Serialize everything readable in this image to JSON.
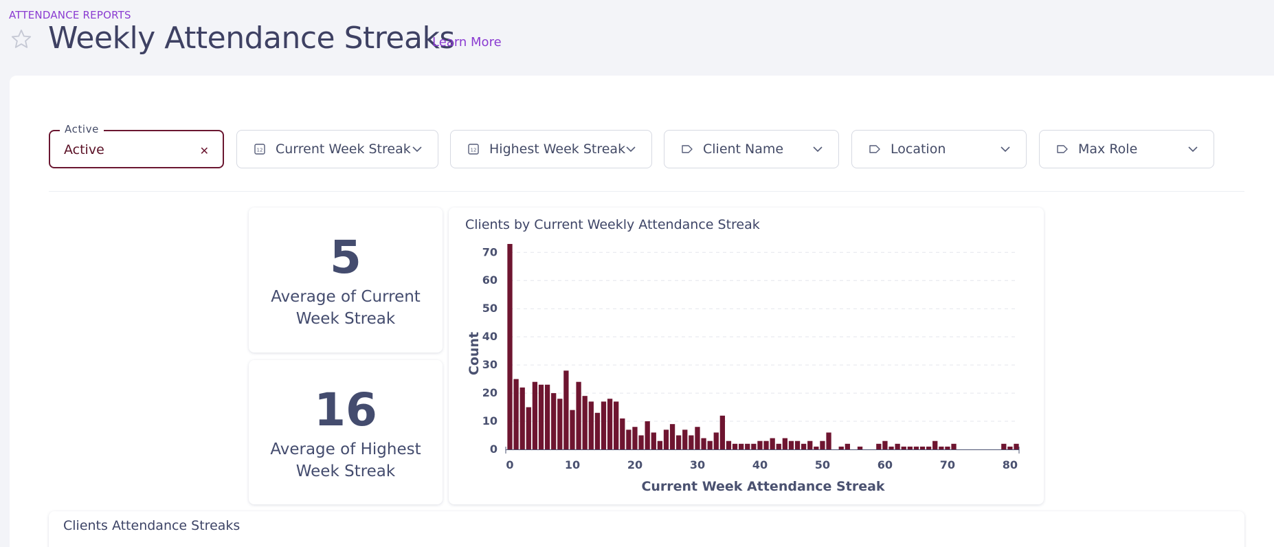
{
  "breadcrumb": "ATTENDANCE REPORTS",
  "page_title": "Weekly Attendance Streaks",
  "learn_more": "Learn More",
  "filters": {
    "active": {
      "legend": "Active",
      "value": "Active",
      "clear_glyph": "✕"
    },
    "current_week_streak": {
      "label": "Current Week Streak",
      "icon": "number-icon"
    },
    "highest_week_streak": {
      "label": "Highest Week Streak",
      "icon": "number-icon"
    },
    "client_name": {
      "label": "Client Name",
      "icon": "tag-icon"
    },
    "location": {
      "label": "Location",
      "icon": "tag-icon"
    },
    "max_role": {
      "label": "Max Role",
      "icon": "tag-icon"
    }
  },
  "kpis": {
    "avg_current": {
      "value": "5",
      "caption_line1": "Average of Current",
      "caption_line2": "Week Streak"
    },
    "avg_highest": {
      "value": "16",
      "caption_line1": "Average of Highest",
      "caption_line2": "Week Streak"
    }
  },
  "table": {
    "title": "Clients Attendance Streaks"
  },
  "colors": {
    "accent": "#8a3bd1",
    "bar": "#6e1530",
    "text": "#3d4466"
  },
  "chart_data": {
    "type": "bar",
    "title": "Clients by Current Weekly Attendance Streak",
    "xlabel": "Current Week Attendance Streak",
    "ylabel": "Count",
    "xlim": [
      0,
      81
    ],
    "ylim": [
      0,
      73
    ],
    "x_ticks": [
      0,
      10,
      20,
      30,
      40,
      50,
      60,
      70,
      80
    ],
    "y_ticks": [
      0,
      10,
      20,
      30,
      40,
      50,
      60,
      70
    ],
    "grid": true,
    "series": [
      {
        "name": "Count",
        "x": [
          0,
          1,
          2,
          3,
          4,
          5,
          6,
          7,
          8,
          9,
          10,
          11,
          12,
          13,
          14,
          15,
          16,
          17,
          18,
          19,
          20,
          21,
          22,
          23,
          24,
          25,
          26,
          27,
          28,
          29,
          30,
          31,
          32,
          33,
          34,
          35,
          36,
          37,
          38,
          39,
          40,
          41,
          42,
          43,
          44,
          45,
          46,
          47,
          48,
          49,
          50,
          51,
          52,
          53,
          54,
          55,
          56,
          57,
          58,
          59,
          60,
          61,
          62,
          63,
          64,
          65,
          66,
          67,
          68,
          69,
          70,
          71,
          72,
          73,
          74,
          75,
          76,
          77,
          78,
          79,
          80,
          81
        ],
        "values": [
          73,
          25,
          22,
          15,
          24,
          23,
          23,
          20,
          18,
          28,
          14,
          24,
          19,
          17,
          13,
          17,
          18,
          17,
          11,
          7,
          8,
          5,
          10,
          6,
          3,
          7,
          9,
          5,
          7,
          5,
          8,
          4,
          3,
          6,
          12,
          3,
          2,
          2,
          2,
          2,
          3,
          3,
          4,
          2,
          4,
          3,
          3,
          2,
          3,
          1,
          3,
          6,
          0,
          1,
          2,
          0,
          1,
          0,
          0,
          2,
          3,
          1,
          2,
          1,
          1,
          1,
          1,
          1,
          3,
          1,
          1,
          2,
          0,
          0,
          0,
          0,
          0,
          0,
          0,
          2,
          1,
          2
        ]
      }
    ]
  }
}
